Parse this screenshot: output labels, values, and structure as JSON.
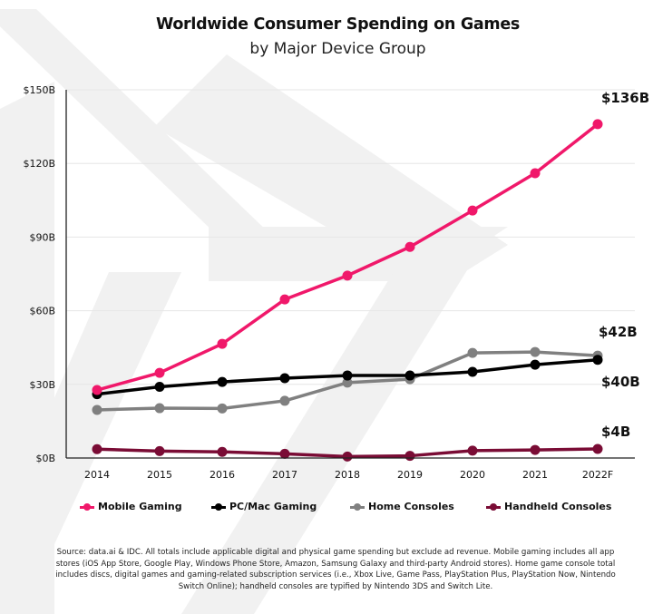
{
  "title": "Worldwide Consumer Spending on Games",
  "subtitle": "by Major Device Group",
  "source_note": "Source: data.ai & IDC. All totals include applicable digital and physical game spending but exclude ad revenue. Mobile gaming includes all app stores (iOS App Store, Google Play, Windows Phone Store, Amazon, Samsung Galaxy and third-party Android stores). Home game console total includes discs, digital games and gaming-related subscription services (i.e., Xbox Live, Game Pass, PlayStation Plus, PlayStation Now, Nintendo Switch Online); handheld consoles are typified by Nintendo 3DS and Switch Lite.",
  "chart_data": {
    "type": "line",
    "title": "Worldwide Consumer Spending on Games",
    "subtitle": "by Major Device Group",
    "xlabel": "",
    "ylabel": "",
    "x": [
      "2014",
      "2015",
      "2016",
      "2017",
      "2018",
      "2019",
      "2020",
      "2021",
      "2022F"
    ],
    "ylim": [
      0,
      150
    ],
    "yticks": [
      0,
      30,
      60,
      90,
      120,
      150
    ],
    "ytick_labels": [
      "$0B",
      "$30B",
      "$60B",
      "$90B",
      "$120B",
      "$150B"
    ],
    "grid": "horizontal",
    "legend_position": "bottom",
    "series": [
      {
        "name": "Mobile Gaming",
        "color": "#F0186A",
        "values": [
          27.7,
          34.7,
          46.5,
          64.6,
          74.3,
          86.0,
          100.8,
          116.0,
          136.0
        ],
        "end_label": "$136B"
      },
      {
        "name": "PC/Mac Gaming",
        "color": "#000000",
        "values": [
          26.0,
          29.0,
          31.0,
          32.5,
          33.6,
          33.6,
          35.1,
          38.0,
          40.0
        ],
        "end_label": "$40B"
      },
      {
        "name": "Home Consoles",
        "color": "#808080",
        "values": [
          19.6,
          20.3,
          20.2,
          23.3,
          30.7,
          32.1,
          42.8,
          43.2,
          41.7
        ],
        "end_label": "$42B"
      },
      {
        "name": "Handheld Consoles",
        "color": "#7A0C35",
        "values": [
          3.6,
          2.8,
          2.5,
          1.7,
          0.6,
          0.9,
          3.0,
          3.3,
          3.7
        ],
        "end_label": "$4B"
      }
    ]
  }
}
